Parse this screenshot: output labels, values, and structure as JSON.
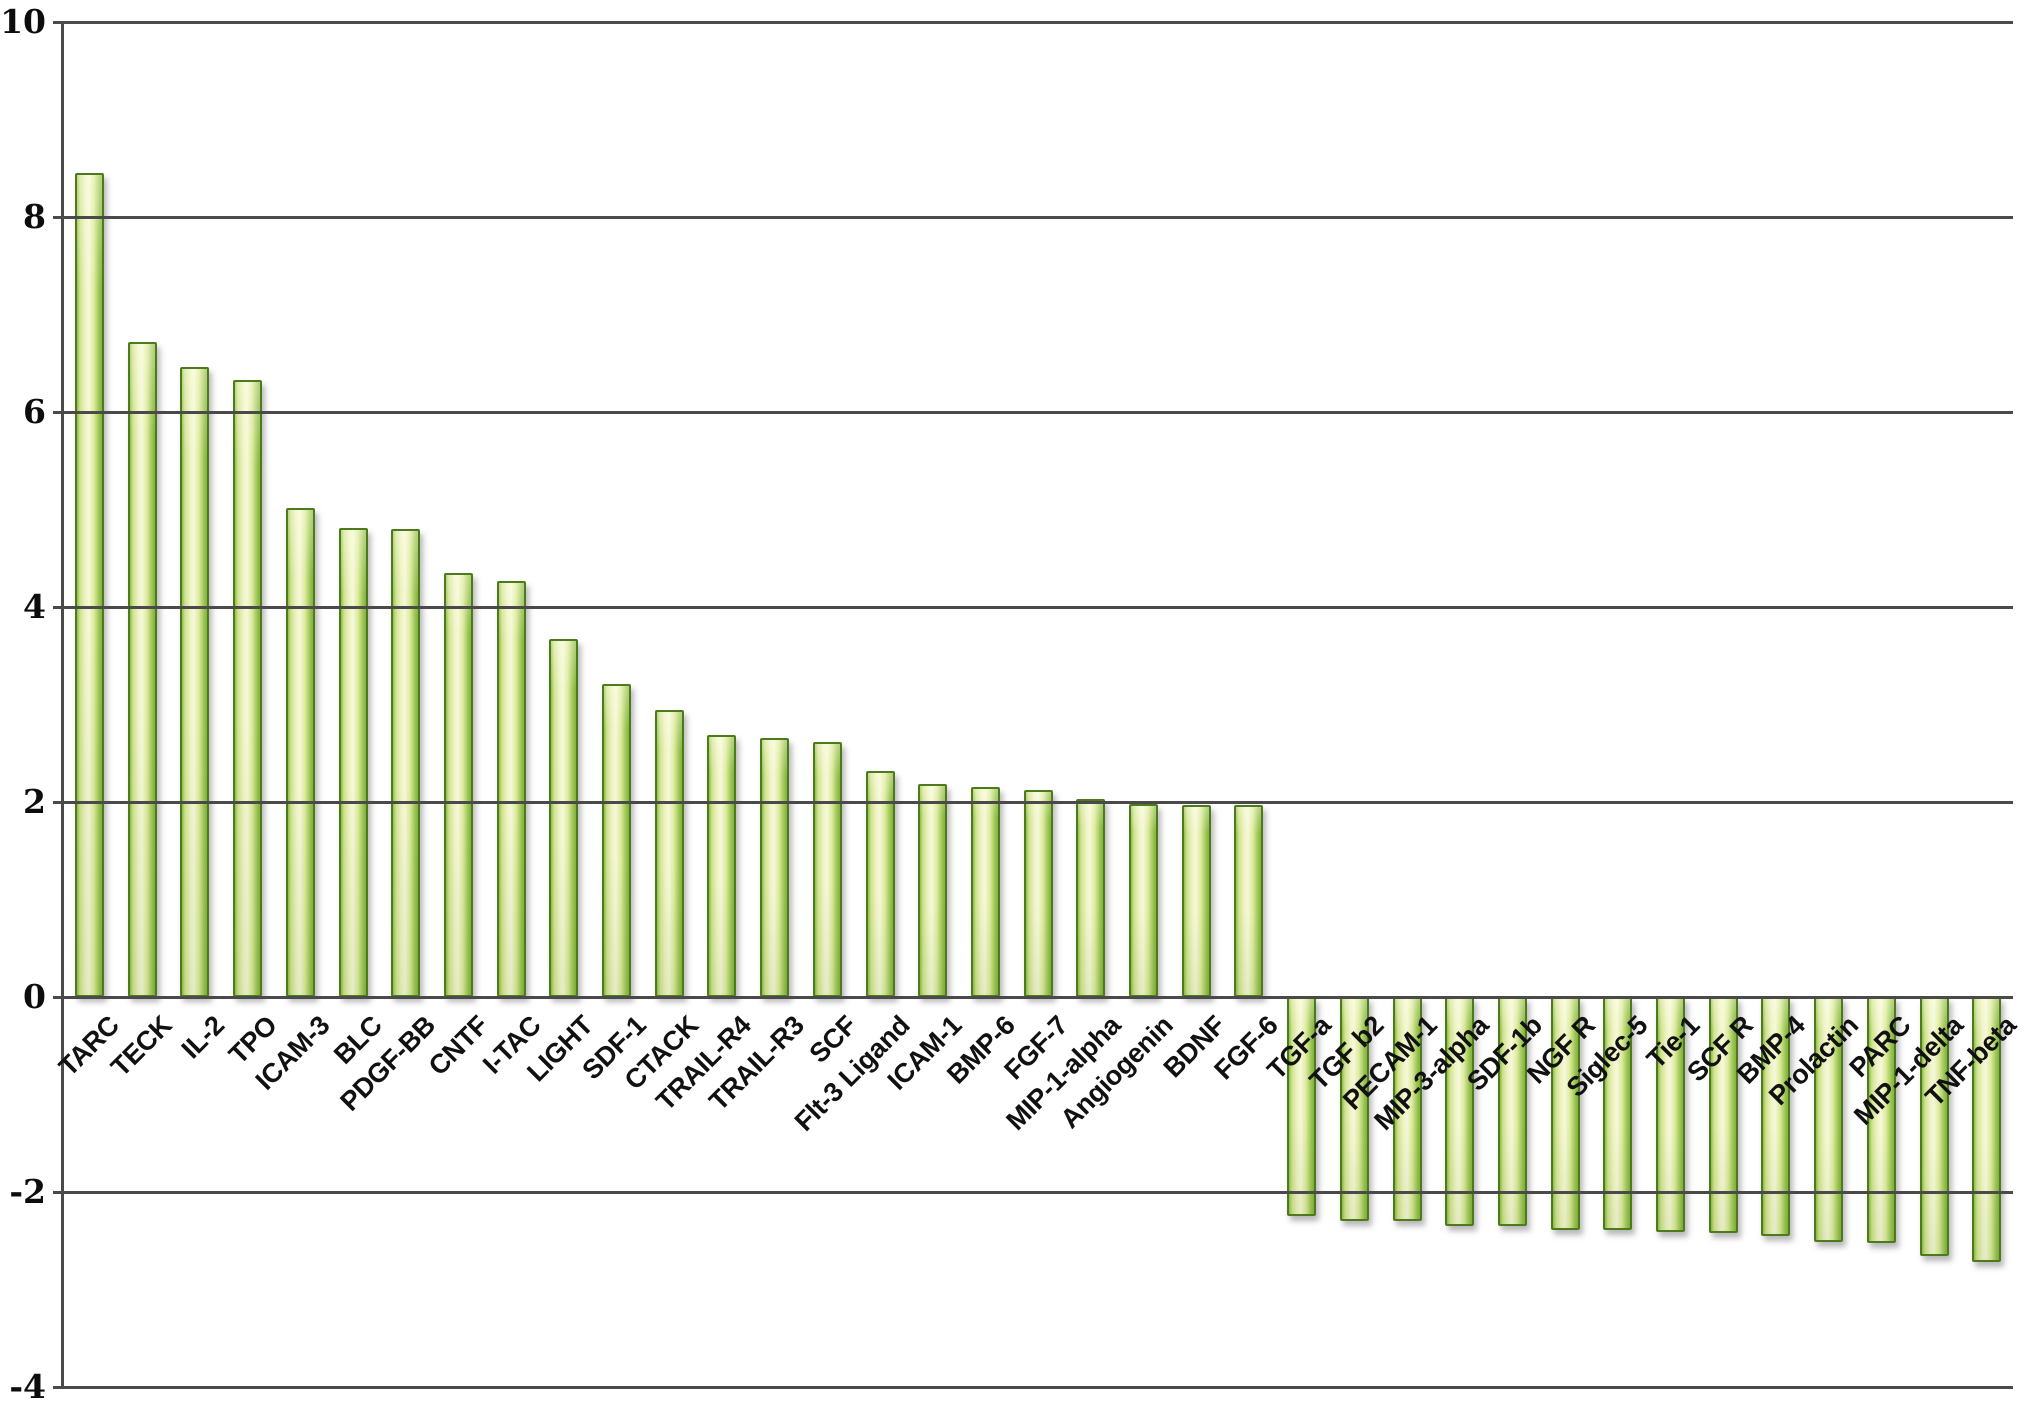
{
  "figure": {
    "background": "#ffffff",
    "title": ""
  },
  "colors": {
    "grid": "#4a4a4a",
    "axis_text": "#0d0d0d",
    "category_text": "#111111",
    "bar_border": "#4e7a1e",
    "bar_gradient": [
      "#8fbe49",
      "#cfe28e",
      "#eff4c6",
      "#f6f8d9",
      "#dcea9c",
      "#96c24f",
      "#84b13e"
    ]
  },
  "chart_data": {
    "type": "bar",
    "title": "",
    "xlabel": "",
    "ylabel": "",
    "ylim": [
      -4,
      10
    ],
    "yticks": [
      10,
      8,
      6,
      4,
      2,
      0,
      -2,
      -4
    ],
    "ytick_labels": [
      "10",
      "8",
      "6",
      "4",
      "2",
      "0",
      "-2",
      "-4"
    ],
    "grid": "horizontal-only",
    "legend": "none",
    "bar_orientation": "vertical",
    "categories": [
      "TARC",
      "TECK",
      "IL-2",
      "TPO",
      "ICAM-3",
      "BLC",
      "PDGF-BB",
      "CNTF",
      "I-TAC",
      "LIGHT",
      "SDF-1",
      "CTACK",
      "TRAIL-R4",
      "TRAIL-R3",
      "SCF",
      "Flt-3 Ligand",
      "ICAM-1",
      "BMP-6",
      "FGF-7",
      "MIP-1-alpha",
      "Angiogenin",
      "BDNF",
      "FGF-6",
      "TGF-a",
      "TGF b2",
      "PECAM-1",
      "MIP-3-alpha",
      "SDF-1b",
      "NGF R",
      "Siglec-5",
      "Tie-1",
      "SCF R",
      "BMP-4",
      "Prolactin",
      "PARC",
      "MIP-1-delta",
      "TNF-beta"
    ],
    "values": [
      8.45,
      6.72,
      6.46,
      6.33,
      5.02,
      4.81,
      4.8,
      4.35,
      4.27,
      3.67,
      3.21,
      2.94,
      2.69,
      2.66,
      2.62,
      2.32,
      2.18,
      2.15,
      2.12,
      2.03,
      1.98,
      1.97,
      1.97,
      -2.25,
      -2.3,
      -2.3,
      -2.35,
      -2.35,
      -2.39,
      -2.39,
      -2.41,
      -2.42,
      -2.45,
      -2.51,
      -2.52,
      -2.66,
      -2.72
    ]
  }
}
